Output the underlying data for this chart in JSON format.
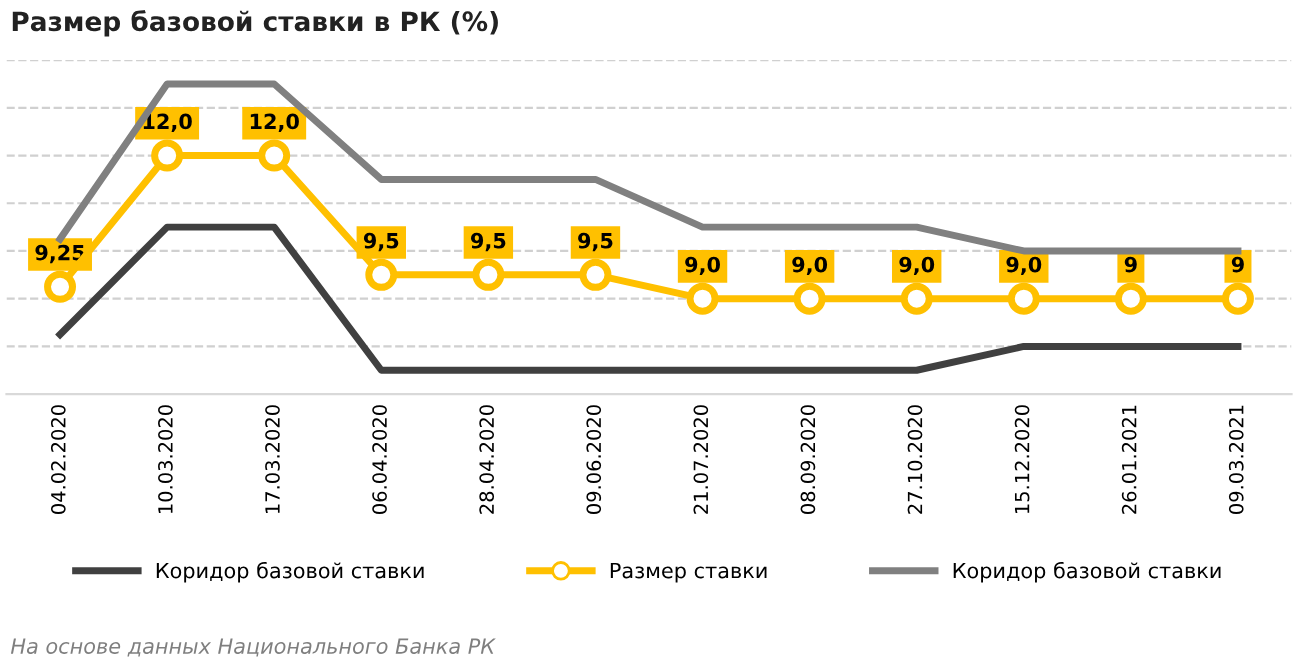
{
  "chart_data": {
    "type": "line",
    "title": "Размер базовой ставки в РК (%)",
    "categories": [
      "04.02.2020",
      "10.03.2020",
      "17.03.2020",
      "06.04.2020",
      "28.04.2020",
      "09.06.2020",
      "21.07.2020",
      "08.09.2020",
      "27.10.2020",
      "15.12.2020",
      "26.01.2021",
      "09.03.2021"
    ],
    "series": [
      {
        "name": "Коридор базовой ставки",
        "color": "#404040",
        "marker": "none",
        "values": [
          8.25,
          10.5,
          10.5,
          7.5,
          7.5,
          7.5,
          7.5,
          7.5,
          7.5,
          8,
          8,
          8
        ]
      },
      {
        "name": "Размер ставки",
        "color": "#ffc000",
        "marker": "circle",
        "values": [
          9.25,
          12,
          12,
          9.5,
          9.5,
          9.5,
          9,
          9,
          9,
          9,
          9,
          9
        ],
        "value_labels": [
          "9,25",
          "12,0",
          "12,0",
          "9,5",
          "9,5",
          "9,5",
          "9,0",
          "9,0",
          "9,0",
          "9,0",
          "9",
          "9"
        ]
      },
      {
        "name": "Коридор базовой ставки",
        "color": "#808080",
        "marker": "none",
        "values": [
          10.25,
          13.5,
          13.5,
          11.5,
          11.5,
          11.5,
          10.5,
          10.5,
          10.5,
          10,
          10,
          10
        ]
      }
    ],
    "ylim": [
      7,
      14
    ],
    "yticks": [
      {
        "value": 7,
        "label": null
      },
      {
        "value": 8,
        "label": null
      },
      {
        "value": 9,
        "label": null
      },
      {
        "value": 10,
        "label": null
      },
      {
        "value": 11,
        "label": null
      },
      {
        "value": 12,
        "label": null
      },
      {
        "value": 13,
        "label": null
      },
      {
        "value": 14,
        "label": null
      }
    ],
    "tick_labels": "x",
    "grid": "y",
    "legend": "bottom",
    "line_style": "solid",
    "annotations": [
      "На основе данных Национального Банка РК"
    ]
  }
}
